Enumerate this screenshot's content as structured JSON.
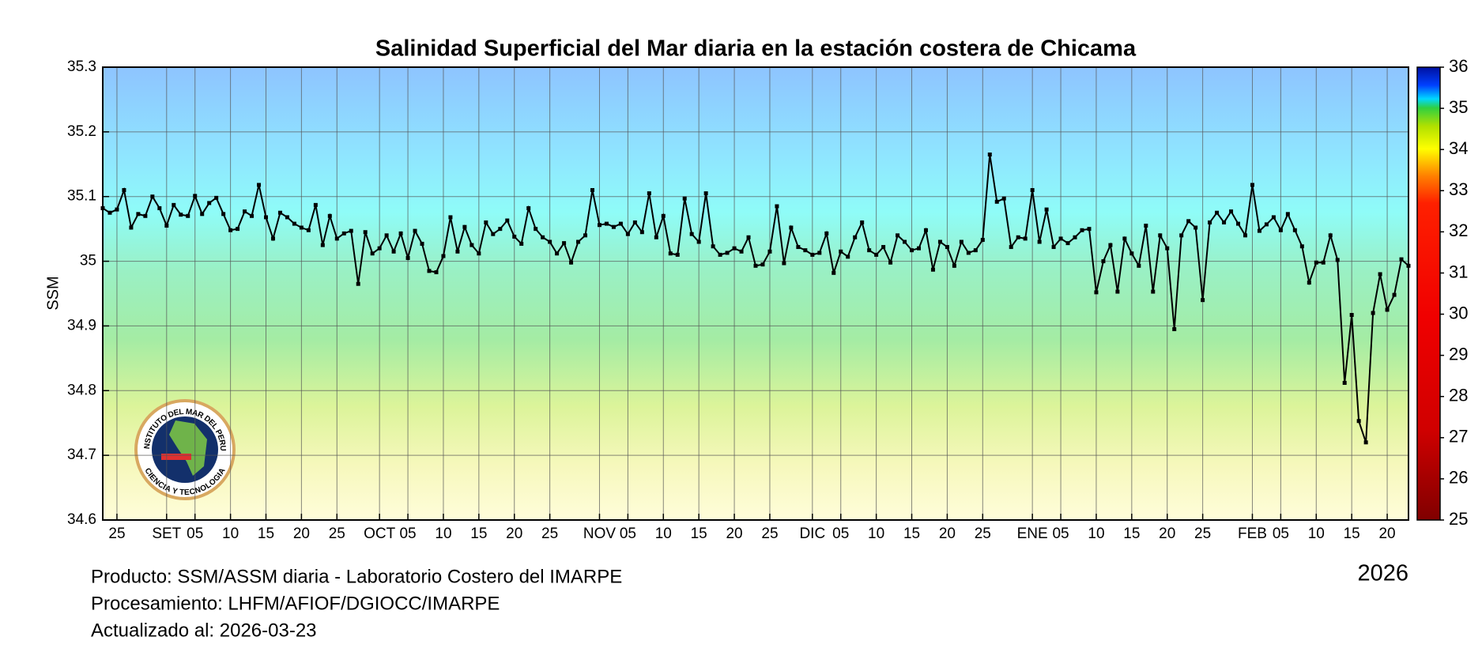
{
  "chart_data": {
    "type": "line",
    "title": "Salinidad Superficial del Mar diaria en la estación costera de Chicama",
    "ylabel": "SSM",
    "year_label": "2026",
    "footer": [
      "Producto: SSM/ASSM diaria - Laboratorio Costero del IMARPE",
      "Procesamiento: LHFM/AFIOF/DGIOCC/IMARPE",
      "Actualizado al: 2026-03-23"
    ],
    "logo": {
      "top_text": "INSTITUTO DEL MAR DEL PERU",
      "bottom_text": "CIENCIA Y TECNOLOGIA"
    },
    "grid": true,
    "color": "#000000",
    "ylim": [
      34.6,
      35.3
    ],
    "yticks": [
      34.6,
      34.7,
      34.8,
      34.9,
      35,
      35.1,
      35.2,
      35.3
    ],
    "xlim": [
      "08-23",
      "02-23"
    ],
    "xticks": [
      {
        "value": "08-25",
        "label": "25"
      },
      {
        "value": "09-01",
        "label": "SET"
      },
      {
        "value": "09-05",
        "label": "05"
      },
      {
        "value": "09-10",
        "label": "10"
      },
      {
        "value": "09-15",
        "label": "15"
      },
      {
        "value": "09-20",
        "label": "20"
      },
      {
        "value": "09-25",
        "label": "25"
      },
      {
        "value": "10-01",
        "label": "OCT"
      },
      {
        "value": "10-05",
        "label": "05"
      },
      {
        "value": "10-10",
        "label": "10"
      },
      {
        "value": "10-15",
        "label": "15"
      },
      {
        "value": "10-20",
        "label": "20"
      },
      {
        "value": "10-25",
        "label": "25"
      },
      {
        "value": "11-01",
        "label": "NOV"
      },
      {
        "value": "11-05",
        "label": "05"
      },
      {
        "value": "11-10",
        "label": "10"
      },
      {
        "value": "11-15",
        "label": "15"
      },
      {
        "value": "11-20",
        "label": "20"
      },
      {
        "value": "11-25",
        "label": "25"
      },
      {
        "value": "12-01",
        "label": "DIC"
      },
      {
        "value": "12-05",
        "label": "05"
      },
      {
        "value": "12-10",
        "label": "10"
      },
      {
        "value": "12-15",
        "label": "15"
      },
      {
        "value": "12-20",
        "label": "20"
      },
      {
        "value": "12-25",
        "label": "25"
      },
      {
        "value": "01-01",
        "label": "ENE"
      },
      {
        "value": "01-05",
        "label": "05"
      },
      {
        "value": "01-10",
        "label": "10"
      },
      {
        "value": "01-15",
        "label": "15"
      },
      {
        "value": "01-20",
        "label": "20"
      },
      {
        "value": "01-25",
        "label": "25"
      },
      {
        "value": "02-01",
        "label": "FEB"
      },
      {
        "value": "02-05",
        "label": "05"
      },
      {
        "value": "02-10",
        "label": "10"
      },
      {
        "value": "02-15",
        "label": "15"
      },
      {
        "value": "02-20",
        "label": "20"
      }
    ],
    "colorbar": {
      "lim": [
        25,
        36
      ],
      "ticks": [
        25,
        26,
        27,
        28,
        29,
        30,
        31,
        32,
        33,
        34,
        35,
        36
      ]
    },
    "x": [
      "08-23",
      "08-24",
      "08-25",
      "08-26",
      "08-27",
      "08-28",
      "08-29",
      "08-30",
      "08-31",
      "09-01",
      "09-02",
      "09-03",
      "09-04",
      "09-05",
      "09-06",
      "09-07",
      "09-08",
      "09-09",
      "09-10",
      "09-11",
      "09-12",
      "09-13",
      "09-14",
      "09-15",
      "09-16",
      "09-17",
      "09-18",
      "09-19",
      "09-20",
      "09-21",
      "09-22",
      "09-23",
      "09-24",
      "09-25",
      "09-26",
      "09-27",
      "09-28",
      "09-29",
      "09-30",
      "10-01",
      "10-02",
      "10-03",
      "10-04",
      "10-05",
      "10-06",
      "10-07",
      "10-08",
      "10-09",
      "10-10",
      "10-11",
      "10-12",
      "10-13",
      "10-14",
      "10-15",
      "10-16",
      "10-17",
      "10-18",
      "10-19",
      "10-20",
      "10-21",
      "10-22",
      "10-23",
      "10-24",
      "10-25",
      "10-26",
      "10-27",
      "10-28",
      "10-29",
      "10-30",
      "10-31",
      "11-01",
      "11-02",
      "11-03",
      "11-04",
      "11-05",
      "11-06",
      "11-07",
      "11-08",
      "11-09",
      "11-10",
      "11-11",
      "11-12",
      "11-13",
      "11-14",
      "11-15",
      "11-16",
      "11-17",
      "11-18",
      "11-19",
      "11-20",
      "11-21",
      "11-22",
      "11-23",
      "11-24",
      "11-25",
      "11-26",
      "11-27",
      "11-28",
      "11-29",
      "11-30",
      "12-01",
      "12-02",
      "12-03",
      "12-04",
      "12-05",
      "12-06",
      "12-07",
      "12-08",
      "12-09",
      "12-10",
      "12-11",
      "12-12",
      "12-13",
      "12-14",
      "12-15",
      "12-16",
      "12-17",
      "12-18",
      "12-19",
      "12-20",
      "12-21",
      "12-22",
      "12-23",
      "12-24",
      "12-25",
      "12-26",
      "12-27",
      "12-28",
      "12-29",
      "12-30",
      "12-31",
      "01-01",
      "01-02",
      "01-03",
      "01-04",
      "01-05",
      "01-06",
      "01-07",
      "01-08",
      "01-09",
      "01-10",
      "01-11",
      "01-12",
      "01-13",
      "01-14",
      "01-15",
      "01-16",
      "01-17",
      "01-18",
      "01-19",
      "01-20",
      "01-21",
      "01-22",
      "01-23",
      "01-24",
      "01-25",
      "01-26",
      "01-27",
      "01-28",
      "01-29",
      "01-30",
      "01-31",
      "02-01",
      "02-02",
      "02-03",
      "02-04",
      "02-05",
      "02-06",
      "02-07",
      "02-08",
      "02-09",
      "02-10",
      "02-11",
      "02-12",
      "02-13",
      "02-14",
      "02-15",
      "02-16",
      "02-17",
      "02-18",
      "02-19",
      "02-20",
      "02-21",
      "02-22",
      "02-23"
    ],
    "series": [
      {
        "name": "SSM",
        "color": "#000000",
        "values": [
          35.082,
          35.075,
          35.08,
          35.11,
          35.052,
          35.073,
          35.07,
          35.1,
          35.082,
          35.055,
          35.087,
          35.072,
          35.07,
          35.101,
          35.073,
          35.09,
          35.098,
          35.073,
          35.048,
          35.05,
          35.077,
          35.07,
          35.118,
          35.068,
          35.035,
          35.075,
          35.068,
          35.058,
          35.052,
          35.048,
          35.087,
          35.025,
          35.07,
          35.035,
          35.043,
          35.047,
          34.965,
          35.045,
          35.012,
          35.02,
          35.04,
          35.015,
          35.043,
          35.005,
          35.047,
          35.027,
          34.985,
          34.983,
          35.008,
          35.068,
          35.015,
          35.053,
          35.025,
          35.012,
          35.06,
          35.042,
          35.05,
          35.063,
          35.038,
          35.027,
          35.082,
          35.05,
          35.037,
          35.03,
          35.012,
          35.028,
          34.998,
          35.03,
          35.04,
          35.11,
          35.056,
          35.058,
          35.053,
          35.058,
          35.042,
          35.06,
          35.045,
          35.105,
          35.037,
          35.07,
          35.012,
          35.01,
          35.097,
          35.042,
          35.03,
          35.105,
          35.023,
          35.01,
          35.013,
          35.02,
          35.015,
          35.037,
          34.993,
          34.995,
          35.015,
          35.085,
          34.997,
          35.052,
          35.022,
          35.017,
          35.01,
          35.013,
          35.043,
          34.982,
          35.015,
          35.007,
          35.037,
          35.06,
          35.017,
          35.01,
          35.022,
          34.998,
          35.04,
          35.03,
          35.017,
          35.02,
          35.048,
          34.987,
          35.03,
          35.022,
          34.993,
          35.03,
          35.013,
          35.017,
          35.033,
          35.165,
          35.092,
          35.097,
          35.022,
          35.037,
          35.035,
          35.11,
          35.03,
          35.08,
          35.022,
          35.035,
          35.028,
          35.037,
          35.048,
          35.05,
          34.952,
          35.0,
          35.025,
          34.953,
          35.035,
          35.012,
          34.993,
          35.055,
          34.953,
          35.04,
          35.02,
          34.895,
          35.04,
          35.062,
          35.052,
          34.94,
          35.06,
          35.075,
          35.06,
          35.077,
          35.058,
          35.04,
          35.118,
          35.047,
          35.057,
          35.068,
          35.048,
          35.073,
          35.048,
          35.023,
          34.967,
          34.998,
          34.998,
          35.04,
          35.002,
          34.812,
          34.917,
          34.753,
          34.72,
          34.92,
          34.98,
          34.925,
          34.948,
          35.003,
          34.993
        ]
      }
    ]
  }
}
